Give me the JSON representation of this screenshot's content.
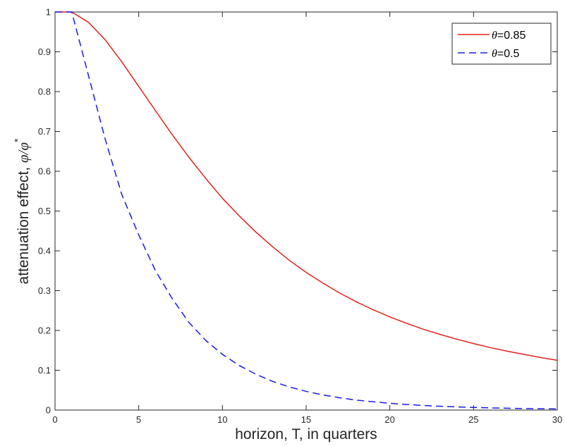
{
  "chart_data": {
    "type": "line",
    "xlabel": "horizon, T, in quarters",
    "ylabel_prefix": "attenuation effect, ",
    "ylabel_symbol": "φ/φ",
    "ylabel_superscript": "*",
    "xlim": [
      0,
      30
    ],
    "ylim": [
      0,
      1
    ],
    "xticks": [
      0,
      5,
      10,
      15,
      20,
      25,
      30
    ],
    "yticks": [
      0,
      0.1,
      0.2,
      0.3,
      0.4,
      0.5,
      0.6,
      0.7,
      0.8,
      0.9,
      1
    ],
    "ytick_labels": [
      "0",
      "0.1",
      "0.2",
      "0.3",
      "0.4",
      "0.5",
      "0.6",
      "0.7",
      "0.8",
      "0.9",
      "1"
    ],
    "grid": false,
    "legend_position": "top-right",
    "series": [
      {
        "name_symbol": "θ",
        "name_value": "=0.85",
        "color": "#e3211c",
        "style": "solid",
        "x": [
          0,
          1,
          2,
          3,
          4,
          5,
          6,
          7,
          8,
          9,
          10,
          11,
          12,
          13,
          14,
          15,
          16,
          17,
          18,
          19,
          20,
          21,
          22,
          23,
          24,
          25,
          26,
          27,
          28,
          29,
          30
        ],
        "values": [
          1.0,
          1.0,
          0.974,
          0.93,
          0.874,
          0.813,
          0.752,
          0.692,
          0.635,
          0.582,
          0.532,
          0.488,
          0.447,
          0.41,
          0.376,
          0.346,
          0.319,
          0.294,
          0.272,
          0.252,
          0.234,
          0.218,
          0.203,
          0.19,
          0.178,
          0.167,
          0.157,
          0.148,
          0.14,
          0.132,
          0.125
        ]
      },
      {
        "name_symbol": "θ",
        "name_value": "=0.5",
        "color": "#1a1ae6",
        "style": "dashed",
        "x": [
          0,
          1,
          2,
          3,
          4,
          5,
          6,
          7,
          8,
          9,
          10,
          11,
          12,
          13,
          14,
          15,
          16,
          17,
          18,
          19,
          20,
          21,
          22,
          23,
          24,
          25,
          26,
          27,
          28,
          29,
          30
        ],
        "values": [
          1.0,
          1.0,
          0.84,
          0.68,
          0.54,
          0.44,
          0.35,
          0.28,
          0.22,
          0.175,
          0.14,
          0.112,
          0.09,
          0.072,
          0.058,
          0.047,
          0.038,
          0.031,
          0.025,
          0.021,
          0.017,
          0.014,
          0.0115,
          0.0095,
          0.0079,
          0.0066,
          0.0055,
          0.0046,
          0.0039,
          0.0033,
          0.0028
        ]
      }
    ]
  }
}
